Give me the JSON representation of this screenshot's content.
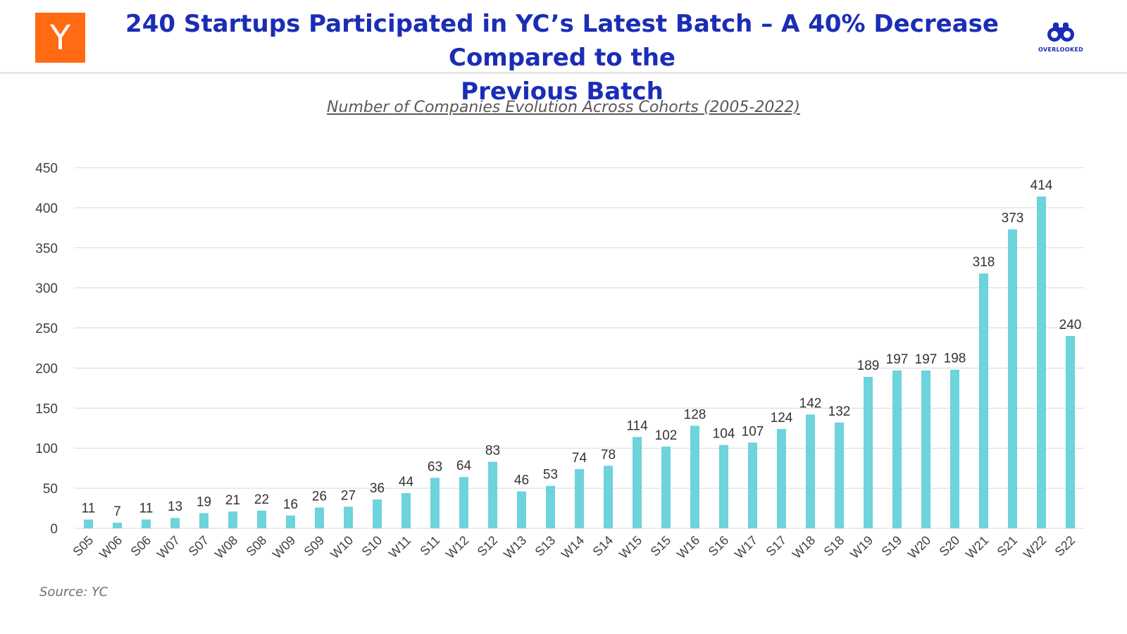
{
  "header": {
    "logo_letter": "Y",
    "title_line1": "240 Startups Participated in YC’s Latest Batch – A 40% Decrease Compared to the",
    "title_line2": "Previous Batch",
    "brand_name": "OVERLOOKED",
    "brand_icon": "binoculars-icon"
  },
  "colors": {
    "bar": "#6dd3dc",
    "title": "#1b2db6",
    "logo_bg": "#ff6a13",
    "grid": "#d9d9d9"
  },
  "chart_data": {
    "type": "bar",
    "title": "Number of Companies Evolution Across Cohorts (2005-2022)",
    "xlabel": "",
    "ylabel": "",
    "ylim": [
      0,
      450
    ],
    "yticks": [
      0,
      50,
      100,
      150,
      200,
      250,
      300,
      350,
      400,
      450
    ],
    "grid": true,
    "legend": "none",
    "data_labels": true,
    "categories": [
      "S05",
      "W06",
      "S06",
      "W07",
      "S07",
      "W08",
      "S08",
      "W09",
      "S09",
      "W10",
      "S10",
      "W11",
      "S11",
      "W12",
      "S12",
      "W13",
      "S13",
      "W14",
      "S14",
      "W15",
      "S15",
      "W16",
      "S16",
      "W17",
      "S17",
      "W18",
      "S18",
      "W19",
      "S19",
      "W20",
      "S20",
      "W21",
      "S21",
      "W22",
      "S22"
    ],
    "values": [
      11,
      7,
      11,
      13,
      19,
      21,
      22,
      16,
      26,
      27,
      36,
      44,
      63,
      64,
      83,
      46,
      53,
      74,
      78,
      114,
      102,
      128,
      104,
      107,
      124,
      142,
      132,
      189,
      197,
      197,
      198,
      318,
      373,
      414,
      240
    ]
  },
  "footer": {
    "source": "Source: YC"
  }
}
